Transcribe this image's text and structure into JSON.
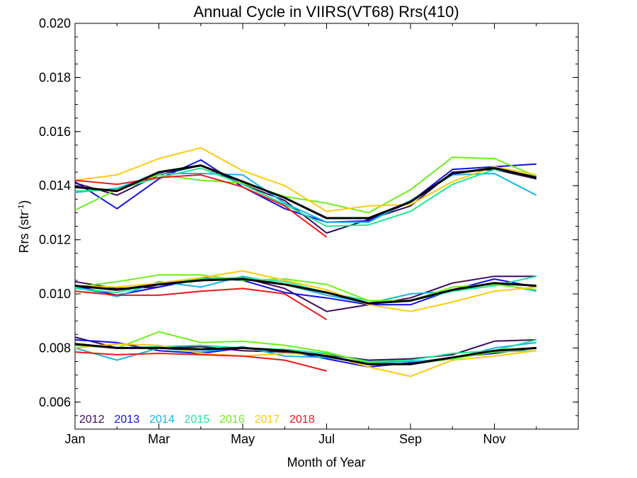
{
  "chart_data": {
    "type": "line",
    "title": "Annual Cycle in VIIRS(VT68) Rrs(410)",
    "xlabel": "Month of Year",
    "ylabel_main": "Rrs (str",
    "ylabel_sup": "-1",
    "ylabel_close": ")",
    "xlim": [
      1,
      13
    ],
    "ylim": [
      0.005,
      0.02
    ],
    "x_ticks": [
      {
        "x": 1,
        "label": "Jan"
      },
      {
        "x": 3,
        "label": "Mar"
      },
      {
        "x": 5,
        "label": "May"
      },
      {
        "x": 7,
        "label": "Jul"
      },
      {
        "x": 9,
        "label": "Sep"
      },
      {
        "x": 11,
        "label": "Nov"
      }
    ],
    "y_ticks": [
      {
        "y": 0.006,
        "label": "0.006"
      },
      {
        "y": 0.008,
        "label": "0.008"
      },
      {
        "y": 0.01,
        "label": "0.010"
      },
      {
        "y": 0.012,
        "label": "0.012"
      },
      {
        "y": 0.014,
        "label": "0.014"
      },
      {
        "y": 0.016,
        "label": "0.016"
      },
      {
        "y": 0.018,
        "label": "0.018"
      },
      {
        "y": 0.02,
        "label": "0.020"
      }
    ],
    "x_months": [
      1.0,
      2.0,
      3.0,
      4.0,
      5.0,
      6.0,
      7.0,
      8.0,
      9.0,
      10.0,
      11.0,
      12.0
    ],
    "legend": [
      {
        "label": "2012",
        "color": "#3d0a5e"
      },
      {
        "label": "2013",
        "color": "#1010e6"
      },
      {
        "label": "2014",
        "color": "#14b4ec"
      },
      {
        "label": "2015",
        "color": "#1ee890"
      },
      {
        "label": "2016",
        "color": "#6af01a"
      },
      {
        "label": "2017",
        "color": "#fcca10"
      },
      {
        "label": "2018",
        "color": "#f01818"
      }
    ],
    "series": [
      {
        "name": "2012",
        "color": "#3d0a5e",
        "width": 2,
        "values": [
          0.0141,
          0.01365,
          0.0144,
          0.01475,
          0.01405,
          0.01345,
          0.01225,
          0.01275,
          0.01325,
          0.0145,
          0.0146,
          0.01425
        ]
      },
      {
        "name": "2013",
        "color": "#1010e6",
        "width": 2,
        "values": [
          0.01415,
          0.01315,
          0.01425,
          0.01495,
          0.01395,
          0.01315,
          0.01265,
          0.0127,
          0.0134,
          0.0146,
          0.0147,
          0.0148
        ]
      },
      {
        "name": "2014",
        "color": "#14b4ec",
        "width": 2,
        "values": [
          0.01375,
          0.0139,
          0.01445,
          0.01445,
          0.0144,
          0.01335,
          0.01265,
          0.01265,
          0.01345,
          0.0144,
          0.01445,
          0.01365
        ]
      },
      {
        "name": "2015",
        "color": "#1ee890",
        "width": 2,
        "values": [
          0.0138,
          0.01385,
          0.0143,
          0.01465,
          0.01405,
          0.0133,
          0.0125,
          0.01255,
          0.01305,
          0.01405,
          0.0146,
          0.01435
        ]
      },
      {
        "name": "2016",
        "color": "#6af01a",
        "width": 2,
        "values": [
          0.0131,
          0.01385,
          0.0144,
          0.0142,
          0.0141,
          0.0136,
          0.01335,
          0.013,
          0.01385,
          0.01505,
          0.015,
          0.01435
        ]
      },
      {
        "name": "2017",
        "color": "#fcca10",
        "width": 2,
        "values": [
          0.0142,
          0.0144,
          0.015,
          0.0154,
          0.01455,
          0.014,
          0.01305,
          0.01325,
          0.0133,
          0.01415,
          0.0147,
          0.0144
        ]
      },
      {
        "name": "2018",
        "color": "#f01818",
        "width": 2,
        "values": [
          0.0142,
          0.01405,
          0.0143,
          0.0144,
          0.01395,
          0.01325,
          0.0121,
          null,
          null,
          null,
          null,
          null
        ]
      },
      {
        "name": "mean",
        "color": "#000000",
        "width": 3,
        "values": [
          0.01395,
          0.0138,
          0.0145,
          0.01475,
          0.01415,
          0.01355,
          0.0128,
          0.0128,
          0.0134,
          0.01445,
          0.01465,
          0.0143
        ]
      },
      {
        "name": "2012",
        "color": "#3d0a5e",
        "width": 2,
        "values": [
          0.01045,
          0.0102,
          0.01025,
          0.01055,
          0.0106,
          0.0102,
          0.00935,
          0.0096,
          0.00985,
          0.0104,
          0.01065,
          0.01065
        ]
      },
      {
        "name": "2013",
        "color": "#1010e6",
        "width": 2,
        "values": [
          0.0103,
          0.00995,
          0.01025,
          0.0106,
          0.0105,
          0.01005,
          0.00985,
          0.0096,
          0.0096,
          0.01015,
          0.01055,
          0.01025
        ]
      },
      {
        "name": "2014",
        "color": "#14b4ec",
        "width": 2,
        "values": [
          0.01025,
          0.0099,
          0.01045,
          0.01025,
          0.01065,
          0.01035,
          0.00995,
          0.00965,
          0.01,
          0.0101,
          0.0104,
          0.0101
        ]
      },
      {
        "name": "2015",
        "color": "#1ee890",
        "width": 2,
        "values": [
          0.0102,
          0.01005,
          0.0104,
          0.01055,
          0.0106,
          0.01045,
          0.01005,
          0.00975,
          0.00975,
          0.0101,
          0.0103,
          0.01065
        ]
      },
      {
        "name": "2016",
        "color": "#6af01a",
        "width": 2,
        "values": [
          0.01025,
          0.01045,
          0.0107,
          0.0107,
          0.0105,
          0.01055,
          0.01035,
          0.00975,
          0.00975,
          0.01025,
          0.01035,
          0.01015
        ]
      },
      {
        "name": "2017",
        "color": "#fcca10",
        "width": 2,
        "values": [
          0.0103,
          0.01025,
          0.0104,
          0.0106,
          0.01085,
          0.0105,
          0.01015,
          0.0096,
          0.00935,
          0.0097,
          0.0101,
          0.01025
        ]
      },
      {
        "name": "2018",
        "color": "#f01818",
        "width": 2,
        "values": [
          0.0101,
          0.00995,
          0.00995,
          0.0101,
          0.0102,
          0.01,
          0.00905,
          null,
          null,
          null,
          null,
          null
        ]
      },
      {
        "name": "mean",
        "color": "#000000",
        "width": 3,
        "values": [
          0.0103,
          0.01015,
          0.01035,
          0.0105,
          0.01055,
          0.01035,
          0.01005,
          0.00965,
          0.00975,
          0.01015,
          0.0104,
          0.0103
        ]
      },
      {
        "name": "2012",
        "color": "#3d0a5e",
        "width": 2,
        "values": [
          0.0084,
          0.008,
          0.008,
          0.00805,
          0.0079,
          0.00785,
          0.00775,
          0.00755,
          0.0076,
          0.00775,
          0.00825,
          0.0083
        ]
      },
      {
        "name": "2013",
        "color": "#1010e6",
        "width": 2,
        "values": [
          0.0083,
          0.0082,
          0.0079,
          0.0078,
          0.008,
          0.0079,
          0.0076,
          0.0073,
          0.00745,
          0.00765,
          0.0078,
          0.008
        ]
      },
      {
        "name": "2014",
        "color": "#14b4ec",
        "width": 2,
        "values": [
          0.008,
          0.00755,
          0.008,
          0.00785,
          0.00805,
          0.0077,
          0.00765,
          0.00745,
          0.0075,
          0.0076,
          0.008,
          0.0082
        ]
      },
      {
        "name": "2015",
        "color": "#1ee890",
        "width": 2,
        "values": [
          0.0081,
          0.008,
          0.00805,
          0.0081,
          0.008,
          0.00795,
          0.0078,
          0.0075,
          0.00755,
          0.0078,
          0.0079,
          0.0083
        ]
      },
      {
        "name": "2016",
        "color": "#6af01a",
        "width": 2,
        "values": [
          0.00815,
          0.008,
          0.0086,
          0.0082,
          0.00825,
          0.0081,
          0.00785,
          0.00745,
          0.0074,
          0.0076,
          0.00785,
          0.0079
        ]
      },
      {
        "name": "2017",
        "color": "#fcca10",
        "width": 2,
        "values": [
          0.008,
          0.00815,
          0.0081,
          0.0078,
          0.0077,
          0.0078,
          0.00775,
          0.0073,
          0.00695,
          0.00755,
          0.0077,
          0.0079
        ]
      },
      {
        "name": "2018",
        "color": "#f01818",
        "width": 2,
        "values": [
          0.00785,
          0.00775,
          0.0078,
          0.00775,
          0.0077,
          0.00755,
          0.00715,
          null,
          null,
          null,
          null,
          null
        ]
      },
      {
        "name": "mean",
        "color": "#000000",
        "width": 3,
        "values": [
          0.00815,
          0.008,
          0.008,
          0.00795,
          0.008,
          0.0079,
          0.0077,
          0.0074,
          0.0074,
          0.00765,
          0.0079,
          0.008
        ]
      }
    ]
  }
}
